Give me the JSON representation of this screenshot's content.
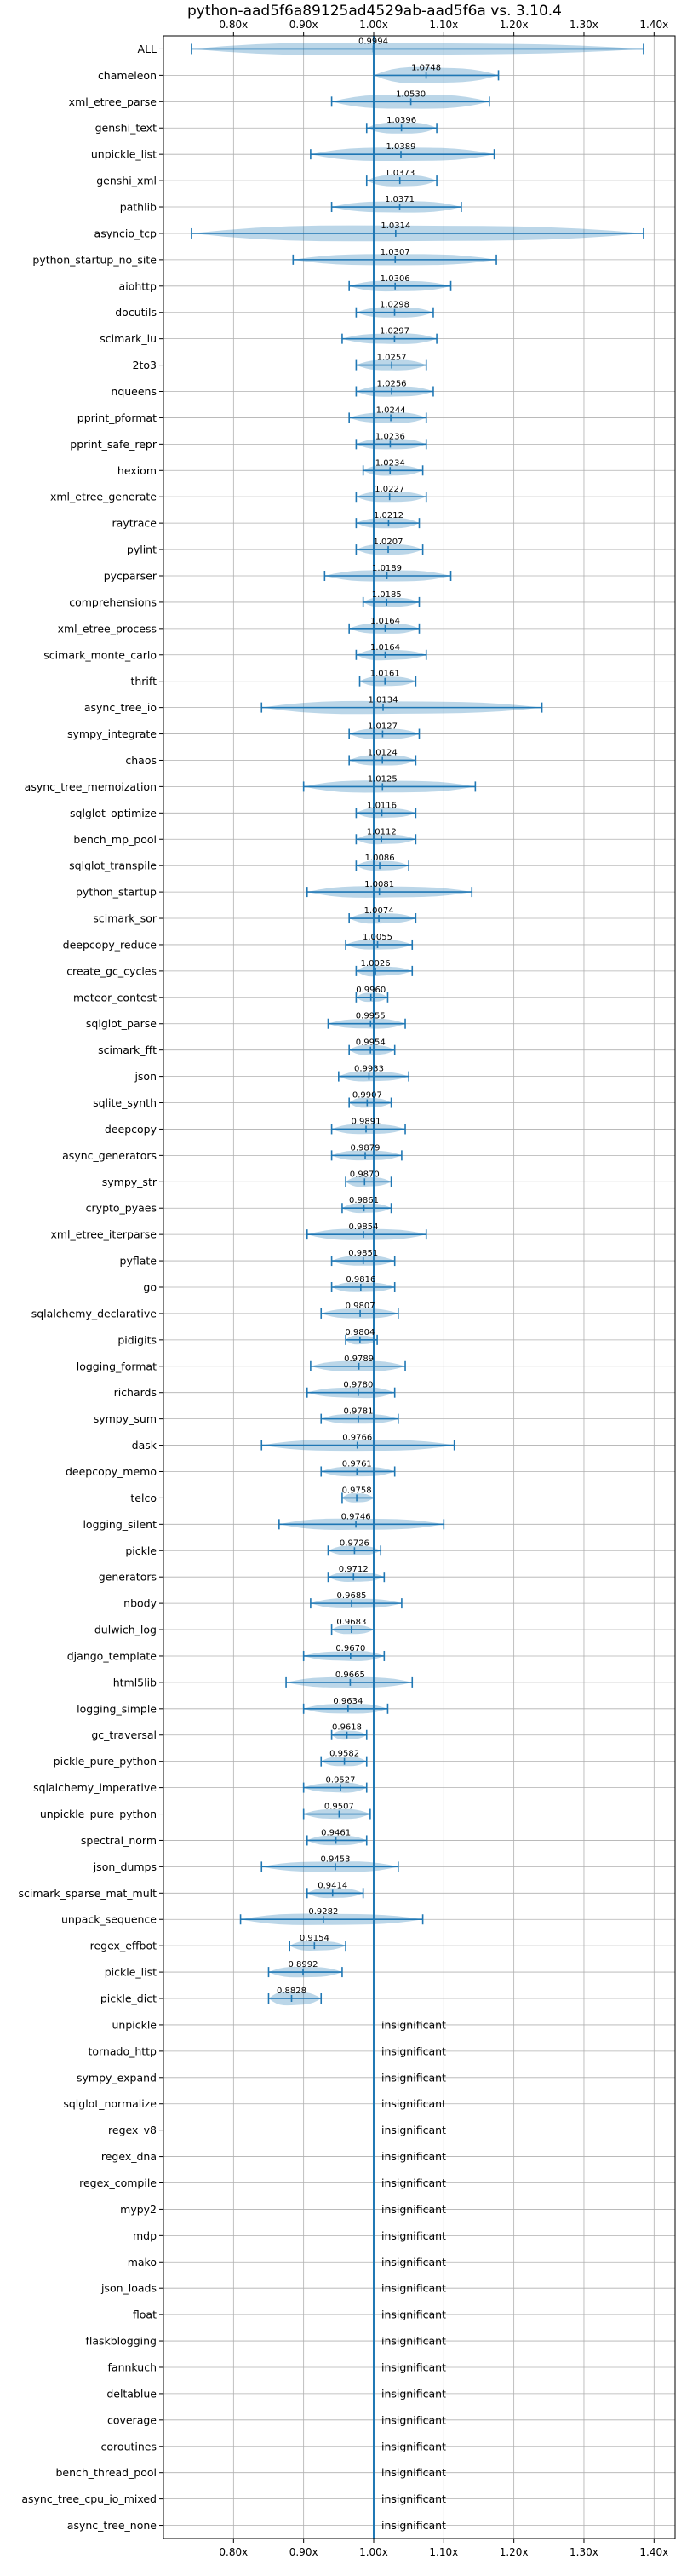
{
  "chart_data": {
    "type": "violin",
    "title": "python-aad5f6a89125ad4529ab-aad5f6a vs. 3.10.4",
    "xlabel": "",
    "ylabel": "",
    "xlim": [
      0.7,
      1.43
    ],
    "xticks": [
      0.8,
      0.9,
      1.0,
      1.1,
      1.2,
      1.3,
      1.4
    ],
    "xtick_labels": [
      "0.80x",
      "0.90x",
      "1.00x",
      "1.10x",
      "1.20x",
      "1.30x",
      "1.40x"
    ],
    "reference_x": 1.0,
    "grid": true,
    "insignificant_label": "insignificant",
    "benchmarks": [
      {
        "name": "ALL",
        "label": "0.9994",
        "median": 0.9994,
        "min": 0.74,
        "max": 1.385,
        "width": 0.32
      },
      {
        "name": "chameleon",
        "label": "1.0748",
        "median": 1.0748,
        "min": 1.0,
        "max": 1.178,
        "width": 0.42
      },
      {
        "name": "xml_etree_parse",
        "label": "1.0530",
        "median": 1.053,
        "min": 0.94,
        "max": 1.165,
        "width": 0.38
      },
      {
        "name": "genshi_text",
        "label": "1.0396",
        "median": 1.0396,
        "min": 0.99,
        "max": 1.09,
        "width": 0.3
      },
      {
        "name": "unpickle_list",
        "label": "1.0389",
        "median": 1.0389,
        "min": 0.91,
        "max": 1.172,
        "width": 0.36
      },
      {
        "name": "genshi_xml",
        "label": "1.0373",
        "median": 1.0373,
        "min": 0.99,
        "max": 1.09,
        "width": 0.3
      },
      {
        "name": "pathlib",
        "label": "1.0371",
        "median": 1.0371,
        "min": 0.94,
        "max": 1.125,
        "width": 0.3
      },
      {
        "name": "asyncio_tcp",
        "label": "1.0314",
        "median": 1.0314,
        "min": 0.74,
        "max": 1.385,
        "width": 0.42
      },
      {
        "name": "python_startup_no_site",
        "label": "1.0307",
        "median": 1.0307,
        "min": 0.885,
        "max": 1.175,
        "width": 0.3
      },
      {
        "name": "aiohttp",
        "label": "1.0306",
        "median": 1.0306,
        "min": 0.965,
        "max": 1.11,
        "width": 0.28
      },
      {
        "name": "docutils",
        "label": "1.0298",
        "median": 1.0298,
        "min": 0.975,
        "max": 1.085,
        "width": 0.28
      },
      {
        "name": "scimark_lu",
        "label": "1.0297",
        "median": 1.0297,
        "min": 0.955,
        "max": 1.09,
        "width": 0.28
      },
      {
        "name": "2to3",
        "label": "1.0257",
        "median": 1.0257,
        "min": 0.975,
        "max": 1.075,
        "width": 0.28
      },
      {
        "name": "nqueens",
        "label": "1.0256",
        "median": 1.0256,
        "min": 0.975,
        "max": 1.085,
        "width": 0.28
      },
      {
        "name": "pprint_pformat",
        "label": "1.0244",
        "median": 1.0244,
        "min": 0.965,
        "max": 1.075,
        "width": 0.28
      },
      {
        "name": "pprint_safe_repr",
        "label": "1.0236",
        "median": 1.0236,
        "min": 0.975,
        "max": 1.075,
        "width": 0.28
      },
      {
        "name": "hexiom",
        "label": "1.0234",
        "median": 1.0234,
        "min": 0.985,
        "max": 1.07,
        "width": 0.28
      },
      {
        "name": "xml_etree_generate",
        "label": "1.0227",
        "median": 1.0227,
        "min": 0.975,
        "max": 1.075,
        "width": 0.28
      },
      {
        "name": "raytrace",
        "label": "1.0212",
        "median": 1.0212,
        "min": 0.975,
        "max": 1.065,
        "width": 0.28
      },
      {
        "name": "pylint",
        "label": "1.0207",
        "median": 1.0207,
        "min": 0.975,
        "max": 1.07,
        "width": 0.28
      },
      {
        "name": "pycparser",
        "label": "1.0189",
        "median": 1.0189,
        "min": 0.93,
        "max": 1.11,
        "width": 0.3
      },
      {
        "name": "comprehensions",
        "label": "1.0185",
        "median": 1.0185,
        "min": 0.985,
        "max": 1.065,
        "width": 0.26
      },
      {
        "name": "xml_etree_process",
        "label": "1.0164",
        "median": 1.0164,
        "min": 0.965,
        "max": 1.065,
        "width": 0.28
      },
      {
        "name": "scimark_monte_carlo",
        "label": "1.0164",
        "median": 1.0164,
        "min": 0.975,
        "max": 1.075,
        "width": 0.28
      },
      {
        "name": "thrift",
        "label": "1.0161",
        "median": 1.0161,
        "min": 0.98,
        "max": 1.06,
        "width": 0.26
      },
      {
        "name": "async_tree_io",
        "label": "1.0134",
        "median": 1.0134,
        "min": 0.84,
        "max": 1.24,
        "width": 0.34
      },
      {
        "name": "sympy_integrate",
        "label": "1.0127",
        "median": 1.0127,
        "min": 0.965,
        "max": 1.065,
        "width": 0.28
      },
      {
        "name": "chaos",
        "label": "1.0124",
        "median": 1.0124,
        "min": 0.965,
        "max": 1.06,
        "width": 0.28
      },
      {
        "name": "async_tree_memoization",
        "label": "1.0125",
        "median": 1.0125,
        "min": 0.9,
        "max": 1.145,
        "width": 0.32
      },
      {
        "name": "sqlglot_optimize",
        "label": "1.0116",
        "median": 1.0116,
        "min": 0.975,
        "max": 1.06,
        "width": 0.26
      },
      {
        "name": "bench_mp_pool",
        "label": "1.0112",
        "median": 1.0112,
        "min": 0.975,
        "max": 1.06,
        "width": 0.26
      },
      {
        "name": "sqlglot_transpile",
        "label": "1.0086",
        "median": 1.0086,
        "min": 0.975,
        "max": 1.05,
        "width": 0.26
      },
      {
        "name": "python_startup",
        "label": "1.0081",
        "median": 1.0081,
        "min": 0.905,
        "max": 1.14,
        "width": 0.3
      },
      {
        "name": "scimark_sor",
        "label": "1.0074",
        "median": 1.0074,
        "min": 0.965,
        "max": 1.06,
        "width": 0.28
      },
      {
        "name": "deepcopy_reduce",
        "label": "1.0055",
        "median": 1.0055,
        "min": 0.96,
        "max": 1.055,
        "width": 0.26
      },
      {
        "name": "create_gc_cycles",
        "label": "1.0026",
        "median": 1.0026,
        "min": 0.975,
        "max": 1.055,
        "width": 0.26
      },
      {
        "name": "meteor_contest",
        "label": "0.9960",
        "median": 0.996,
        "min": 0.975,
        "max": 1.02,
        "width": 0.24
      },
      {
        "name": "sqlglot_parse",
        "label": "0.9955",
        "median": 0.9955,
        "min": 0.935,
        "max": 1.045,
        "width": 0.26
      },
      {
        "name": "scimark_fft",
        "label": "0.9954",
        "median": 0.9954,
        "min": 0.965,
        "max": 1.03,
        "width": 0.26
      },
      {
        "name": "json",
        "label": "0.9933",
        "median": 0.9933,
        "min": 0.95,
        "max": 1.05,
        "width": 0.26
      },
      {
        "name": "sqlite_synth",
        "label": "0.9907",
        "median": 0.9907,
        "min": 0.965,
        "max": 1.025,
        "width": 0.26
      },
      {
        "name": "deepcopy",
        "label": "0.9891",
        "median": 0.9891,
        "min": 0.94,
        "max": 1.045,
        "width": 0.26
      },
      {
        "name": "async_generators",
        "label": "0.9879",
        "median": 0.9879,
        "min": 0.94,
        "max": 1.04,
        "width": 0.26
      },
      {
        "name": "sympy_str",
        "label": "0.9870",
        "median": 0.987,
        "min": 0.96,
        "max": 1.025,
        "width": 0.26
      },
      {
        "name": "crypto_pyaes",
        "label": "0.9861",
        "median": 0.9861,
        "min": 0.955,
        "max": 1.025,
        "width": 0.26
      },
      {
        "name": "xml_etree_iterparse",
        "label": "0.9854",
        "median": 0.9854,
        "min": 0.905,
        "max": 1.075,
        "width": 0.3
      },
      {
        "name": "pyflate",
        "label": "0.9851",
        "median": 0.9851,
        "min": 0.94,
        "max": 1.03,
        "width": 0.26
      },
      {
        "name": "go",
        "label": "0.9816",
        "median": 0.9816,
        "min": 0.94,
        "max": 1.03,
        "width": 0.26
      },
      {
        "name": "sqlalchemy_declarative",
        "label": "0.9807",
        "median": 0.9807,
        "min": 0.925,
        "max": 1.035,
        "width": 0.26
      },
      {
        "name": "pidigits",
        "label": "0.9804",
        "median": 0.9804,
        "min": 0.96,
        "max": 1.005,
        "width": 0.24
      },
      {
        "name": "logging_format",
        "label": "0.9789",
        "median": 0.9789,
        "min": 0.91,
        "max": 1.045,
        "width": 0.28
      },
      {
        "name": "richards",
        "label": "0.9780",
        "median": 0.978,
        "min": 0.905,
        "max": 1.03,
        "width": 0.28
      },
      {
        "name": "sympy_sum",
        "label": "0.9781",
        "median": 0.9781,
        "min": 0.925,
        "max": 1.035,
        "width": 0.26
      },
      {
        "name": "dask",
        "label": "0.9766",
        "median": 0.9766,
        "min": 0.84,
        "max": 1.115,
        "width": 0.3
      },
      {
        "name": "deepcopy_memo",
        "label": "0.9761",
        "median": 0.9761,
        "min": 0.925,
        "max": 1.03,
        "width": 0.26
      },
      {
        "name": "telco",
        "label": "0.9758",
        "median": 0.9758,
        "min": 0.955,
        "max": 1.0,
        "width": 0.24
      },
      {
        "name": "logging_silent",
        "label": "0.9746",
        "median": 0.9746,
        "min": 0.865,
        "max": 1.1,
        "width": 0.3
      },
      {
        "name": "pickle",
        "label": "0.9726",
        "median": 0.9726,
        "min": 0.935,
        "max": 1.01,
        "width": 0.26
      },
      {
        "name": "generators",
        "label": "0.9712",
        "median": 0.9712,
        "min": 0.935,
        "max": 1.015,
        "width": 0.26
      },
      {
        "name": "nbody",
        "label": "0.9685",
        "median": 0.9685,
        "min": 0.91,
        "max": 1.04,
        "width": 0.26
      },
      {
        "name": "dulwich_log",
        "label": "0.9683",
        "median": 0.9683,
        "min": 0.94,
        "max": 1.0,
        "width": 0.24
      },
      {
        "name": "django_template",
        "label": "0.9670",
        "median": 0.967,
        "min": 0.9,
        "max": 1.015,
        "width": 0.26
      },
      {
        "name": "html5lib",
        "label": "0.9665",
        "median": 0.9665,
        "min": 0.875,
        "max": 1.055,
        "width": 0.28
      },
      {
        "name": "logging_simple",
        "label": "0.9634",
        "median": 0.9634,
        "min": 0.9,
        "max": 1.02,
        "width": 0.26
      },
      {
        "name": "gc_traversal",
        "label": "0.9618",
        "median": 0.9618,
        "min": 0.94,
        "max": 0.99,
        "width": 0.24
      },
      {
        "name": "pickle_pure_python",
        "label": "0.9582",
        "median": 0.9582,
        "min": 0.925,
        "max": 0.99,
        "width": 0.26
      },
      {
        "name": "sqlalchemy_imperative",
        "label": "0.9527",
        "median": 0.9527,
        "min": 0.9,
        "max": 0.99,
        "width": 0.26
      },
      {
        "name": "unpickle_pure_python",
        "label": "0.9507",
        "median": 0.9507,
        "min": 0.9,
        "max": 0.995,
        "width": 0.26
      },
      {
        "name": "spectral_norm",
        "label": "0.9461",
        "median": 0.9461,
        "min": 0.905,
        "max": 0.99,
        "width": 0.26
      },
      {
        "name": "json_dumps",
        "label": "0.9453",
        "median": 0.9453,
        "min": 0.84,
        "max": 1.035,
        "width": 0.28
      },
      {
        "name": "scimark_sparse_mat_mult",
        "label": "0.9414",
        "median": 0.9414,
        "min": 0.905,
        "max": 0.985,
        "width": 0.26
      },
      {
        "name": "unpack_sequence",
        "label": "0.9282",
        "median": 0.9282,
        "min": 0.81,
        "max": 1.07,
        "width": 0.3
      },
      {
        "name": "regex_effbot",
        "label": "0.9154",
        "median": 0.9154,
        "min": 0.88,
        "max": 0.96,
        "width": 0.26
      },
      {
        "name": "pickle_list",
        "label": "0.8992",
        "median": 0.8992,
        "min": 0.85,
        "max": 0.955,
        "width": 0.28
      },
      {
        "name": "pickle_dict",
        "label": "0.8828",
        "median": 0.8828,
        "min": 0.85,
        "max": 0.925,
        "width": 0.36
      },
      {
        "name": "unpickle",
        "insignificant": true
      },
      {
        "name": "tornado_http",
        "insignificant": true
      },
      {
        "name": "sympy_expand",
        "insignificant": true
      },
      {
        "name": "sqlglot_normalize",
        "insignificant": true
      },
      {
        "name": "regex_v8",
        "insignificant": true
      },
      {
        "name": "regex_dna",
        "insignificant": true
      },
      {
        "name": "regex_compile",
        "insignificant": true
      },
      {
        "name": "mypy2",
        "insignificant": true
      },
      {
        "name": "mdp",
        "insignificant": true
      },
      {
        "name": "mako",
        "insignificant": true
      },
      {
        "name": "json_loads",
        "insignificant": true
      },
      {
        "name": "float",
        "insignificant": true
      },
      {
        "name": "flaskblogging",
        "insignificant": true
      },
      {
        "name": "fannkuch",
        "insignificant": true
      },
      {
        "name": "deltablue",
        "insignificant": true
      },
      {
        "name": "coverage",
        "insignificant": true
      },
      {
        "name": "coroutines",
        "insignificant": true
      },
      {
        "name": "bench_thread_pool",
        "insignificant": true
      },
      {
        "name": "async_tree_cpu_io_mixed",
        "insignificant": true
      },
      {
        "name": "async_tree_none",
        "insignificant": true
      }
    ]
  }
}
